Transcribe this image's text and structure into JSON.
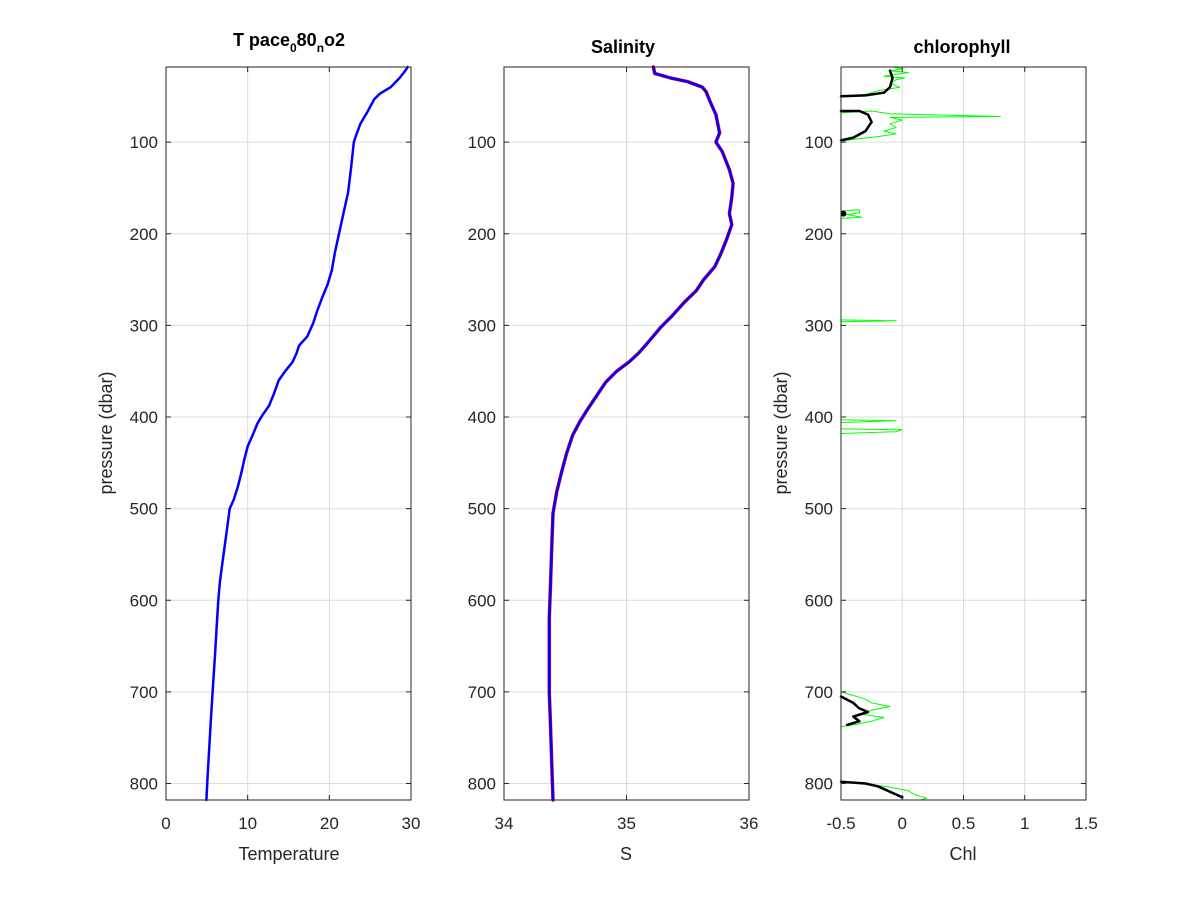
{
  "chart_data": [
    {
      "id": "temperature",
      "type": "line",
      "title_main": "T pace",
      "title_sub1": "0",
      "title_mid": "80",
      "title_sub2": "n",
      "title_end": "o2",
      "xlabel": "Temperature",
      "ylabel": "pressure (dbar)",
      "xlim": [
        0,
        30
      ],
      "ylim": [
        18,
        818
      ],
      "y_reversed": true,
      "xticks": [
        "0",
        "10",
        "20",
        "30"
      ],
      "xtick_values": [
        0,
        10,
        20,
        30
      ],
      "yticks": [
        "100",
        "200",
        "300",
        "400",
        "500",
        "600",
        "700",
        "800"
      ],
      "ytick_values": [
        100,
        200,
        300,
        400,
        500,
        600,
        700,
        800
      ],
      "grid": true,
      "series": [
        {
          "color": "#0000ff",
          "points": [
            [
              29.6,
              18
            ],
            [
              29.3,
              22
            ],
            [
              28.6,
              30
            ],
            [
              27.5,
              40
            ],
            [
              26.2,
              47
            ],
            [
              25.5,
              53
            ],
            [
              24.6,
              68
            ],
            [
              23.8,
              80
            ],
            [
              23.3,
              92
            ],
            [
              23.0,
              100
            ],
            [
              22.7,
              125
            ],
            [
              22.3,
              155
            ],
            [
              21.8,
              175
            ],
            [
              21.3,
              195
            ],
            [
              20.7,
              220
            ],
            [
              20.3,
              240
            ],
            [
              19.8,
              255
            ],
            [
              19.2,
              268
            ],
            [
              18.6,
              282
            ],
            [
              18.0,
              298
            ],
            [
              17.3,
              312
            ],
            [
              16.3,
              322
            ],
            [
              16.0,
              330
            ],
            [
              15.5,
              340
            ],
            [
              14.6,
              350
            ],
            [
              13.8,
              360
            ],
            [
              13.2,
              375
            ],
            [
              12.6,
              388
            ],
            [
              11.8,
              398
            ],
            [
              11.2,
              407
            ],
            [
              10.6,
              420
            ],
            [
              10.0,
              432
            ],
            [
              9.6,
              446
            ],
            [
              9.2,
              462
            ],
            [
              8.8,
              476
            ],
            [
              8.3,
              490
            ],
            [
              7.8,
              500
            ],
            [
              7.5,
              520
            ],
            [
              7.2,
              540
            ],
            [
              6.9,
              560
            ],
            [
              6.6,
              580
            ],
            [
              6.4,
              600
            ],
            [
              6.2,
              630
            ],
            [
              6.0,
              660
            ],
            [
              5.7,
              700
            ],
            [
              5.5,
              730
            ],
            [
              5.3,
              760
            ],
            [
              5.1,
              790
            ],
            [
              4.95,
              818
            ]
          ]
        }
      ]
    },
    {
      "id": "salinity",
      "type": "line",
      "title": "Salinity",
      "xlabel": "S",
      "xlim": [
        34,
        36
      ],
      "ylim": [
        18,
        818
      ],
      "y_reversed": true,
      "xticks": [
        "34",
        "35",
        "36"
      ],
      "xtick_values": [
        34,
        35,
        36
      ],
      "yticks": [
        "100",
        "200",
        "300",
        "400",
        "500",
        "600",
        "700",
        "800"
      ],
      "ytick_values": [
        100,
        200,
        300,
        400,
        500,
        600,
        700,
        800
      ],
      "grid": true,
      "series": [
        {
          "color": "#ff0000",
          "points": [
            [
              35.22,
              18
            ],
            [
              35.23,
              25
            ],
            [
              35.36,
              30
            ],
            [
              35.5,
              34
            ],
            [
              35.62,
              40
            ],
            [
              35.65,
              45
            ],
            [
              35.68,
              55
            ],
            [
              35.73,
              70
            ],
            [
              35.76,
              90
            ],
            [
              35.73,
              100
            ],
            [
              35.78,
              110
            ],
            [
              35.84,
              130
            ],
            [
              35.87,
              145
            ],
            [
              35.86,
              160
            ],
            [
              35.84,
              178
            ],
            [
              35.86,
              190
            ],
            [
              35.82,
              205
            ],
            [
              35.77,
              222
            ],
            [
              35.72,
              236
            ],
            [
              35.63,
              250
            ],
            [
              35.57,
              262
            ],
            [
              35.47,
              275
            ],
            [
              35.37,
              290
            ],
            [
              35.28,
              302
            ],
            [
              35.18,
              318
            ],
            [
              35.1,
              330
            ],
            [
              35.02,
              340
            ],
            [
              34.92,
              350
            ],
            [
              34.83,
              362
            ],
            [
              34.75,
              378
            ],
            [
              34.68,
              392
            ],
            [
              34.62,
              405
            ],
            [
              34.56,
              420
            ],
            [
              34.51,
              440
            ],
            [
              34.47,
              460
            ],
            [
              34.43,
              482
            ],
            [
              34.4,
              505
            ],
            [
              34.39,
              540
            ],
            [
              34.38,
              580
            ],
            [
              34.37,
              620
            ],
            [
              34.37,
              660
            ],
            [
              34.37,
              700
            ],
            [
              34.38,
              740
            ],
            [
              34.39,
              780
            ],
            [
              34.4,
              818
            ]
          ]
        },
        {
          "color": "#0000ff",
          "points": [
            [
              35.22,
              18
            ],
            [
              35.23,
              25
            ],
            [
              35.36,
              30
            ],
            [
              35.5,
              34
            ],
            [
              35.62,
              40
            ],
            [
              35.65,
              45
            ],
            [
              35.68,
              55
            ],
            [
              35.73,
              70
            ],
            [
              35.76,
              90
            ],
            [
              35.73,
              100
            ],
            [
              35.78,
              110
            ],
            [
              35.84,
              130
            ],
            [
              35.87,
              145
            ],
            [
              35.86,
              160
            ],
            [
              35.84,
              178
            ],
            [
              35.86,
              190
            ],
            [
              35.82,
              205
            ],
            [
              35.77,
              222
            ],
            [
              35.72,
              236
            ],
            [
              35.63,
              250
            ],
            [
              35.57,
              262
            ],
            [
              35.47,
              275
            ],
            [
              35.37,
              290
            ],
            [
              35.28,
              302
            ],
            [
              35.18,
              318
            ],
            [
              35.1,
              330
            ],
            [
              35.02,
              340
            ],
            [
              34.92,
              350
            ],
            [
              34.83,
              362
            ],
            [
              34.75,
              378
            ],
            [
              34.68,
              392
            ],
            [
              34.62,
              405
            ],
            [
              34.56,
              420
            ],
            [
              34.51,
              440
            ],
            [
              34.47,
              460
            ],
            [
              34.43,
              482
            ],
            [
              34.4,
              505
            ],
            [
              34.39,
              540
            ],
            [
              34.38,
              580
            ],
            [
              34.37,
              620
            ],
            [
              34.37,
              660
            ],
            [
              34.37,
              700
            ],
            [
              34.38,
              740
            ],
            [
              34.39,
              780
            ],
            [
              34.4,
              818
            ]
          ]
        }
      ]
    },
    {
      "id": "chlorophyll",
      "type": "line",
      "title": "chlorophyll",
      "xlabel": "Chl",
      "ylabel": "pressure (dbar)",
      "xlim": [
        -0.5,
        1.5
      ],
      "ylim": [
        18,
        818
      ],
      "y_reversed": true,
      "xticks": [
        "-0.5",
        "0",
        "0.5",
        "1",
        "1.5"
      ],
      "xtick_values": [
        -0.5,
        0,
        0.5,
        1,
        1.5
      ],
      "yticks": [
        "100",
        "200",
        "300",
        "400",
        "500",
        "600",
        "700",
        "800"
      ],
      "ytick_values": [
        100,
        200,
        300,
        400,
        500,
        600,
        700,
        800
      ],
      "grid": true,
      "series": [
        {
          "color": "#00ff00",
          "segments": [
            [
              [
                -0.5,
                50
              ],
              [
                -0.3,
                48
              ],
              [
                -0.2,
                44
              ],
              [
                -0.02,
                40
              ],
              [
                -0.1,
                36
              ],
              [
                -0.05,
                32
              ],
              [
                0.02,
                30
              ],
              [
                -0.15,
                28
              ],
              [
                0.05,
                24
              ],
              [
                -0.1,
                22
              ],
              [
                0.0,
                20
              ],
              [
                -0.08,
                18
              ]
            ],
            [
              [
                -0.5,
                68
              ],
              [
                -0.25,
                66
              ],
              [
                -0.1,
                69
              ],
              [
                0.8,
                72
              ],
              [
                -0.1,
                73
              ],
              [
                0.0,
                76
              ],
              [
                -0.1,
                80
              ],
              [
                -0.05,
                84
              ],
              [
                -0.15,
                88
              ],
              [
                -0.05,
                91
              ],
              [
                -0.2,
                94
              ],
              [
                -0.4,
                97
              ],
              [
                -0.5,
                99
              ]
            ],
            [
              [
                -0.5,
                175
              ],
              [
                -0.35,
                174
              ],
              [
                -0.35,
                177
              ],
              [
                -0.45,
                179
              ],
              [
                -0.33,
                182
              ],
              [
                -0.5,
                183
              ]
            ],
            [
              [
                -0.5,
                294
              ],
              [
                -0.05,
                295
              ],
              [
                -0.5,
                296
              ]
            ],
            [
              [
                -0.5,
                403
              ],
              [
                -0.05,
                404
              ],
              [
                -0.5,
                406
              ]
            ],
            [
              [
                -0.5,
                413
              ],
              [
                -0.0,
                414
              ],
              [
                -0.05,
                416
              ],
              [
                -0.5,
                418
              ]
            ],
            [
              [
                -0.5,
                700
              ],
              [
                -0.4,
                704
              ],
              [
                -0.3,
                708
              ],
              [
                -0.25,
                712
              ],
              [
                -0.1,
                716
              ],
              [
                -0.25,
                720
              ],
              [
                -0.35,
                724
              ],
              [
                -0.15,
                728
              ],
              [
                -0.25,
                732
              ],
              [
                -0.4,
                736
              ],
              [
                -0.5,
                738
              ]
            ],
            [
              [
                -0.5,
                798
              ],
              [
                -0.3,
                800
              ],
              [
                -0.1,
                804
              ],
              [
                0.05,
                808
              ],
              [
                0.1,
                812
              ],
              [
                0.2,
                816
              ],
              [
                0.15,
                818
              ]
            ]
          ]
        },
        {
          "color": "#000000",
          "segments": [
            [
              [
                -0.5,
                50
              ],
              [
                -0.3,
                49
              ],
              [
                -0.15,
                46
              ],
              [
                -0.1,
                40
              ],
              [
                -0.08,
                30
              ],
              [
                -0.1,
                22
              ]
            ],
            [
              [
                -0.5,
                66
              ],
              [
                -0.35,
                66
              ],
              [
                -0.28,
                70
              ],
              [
                -0.25,
                78
              ],
              [
                -0.3,
                88
              ],
              [
                -0.4,
                95
              ],
              [
                -0.5,
                98
              ]
            ],
            [
              [
                -0.48,
                178
              ]
            ],
            [
              [
                -0.5,
                705
              ],
              [
                -0.4,
                712
              ],
              [
                -0.35,
                718
              ],
              [
                -0.28,
                722
              ],
              [
                -0.4,
                727
              ],
              [
                -0.35,
                732
              ],
              [
                -0.45,
                736
              ]
            ],
            [
              [
                -0.5,
                798
              ],
              [
                -0.3,
                800
              ],
              [
                -0.2,
                803
              ],
              [
                -0.05,
                812
              ],
              [
                0.0,
                815
              ]
            ]
          ]
        }
      ]
    }
  ]
}
